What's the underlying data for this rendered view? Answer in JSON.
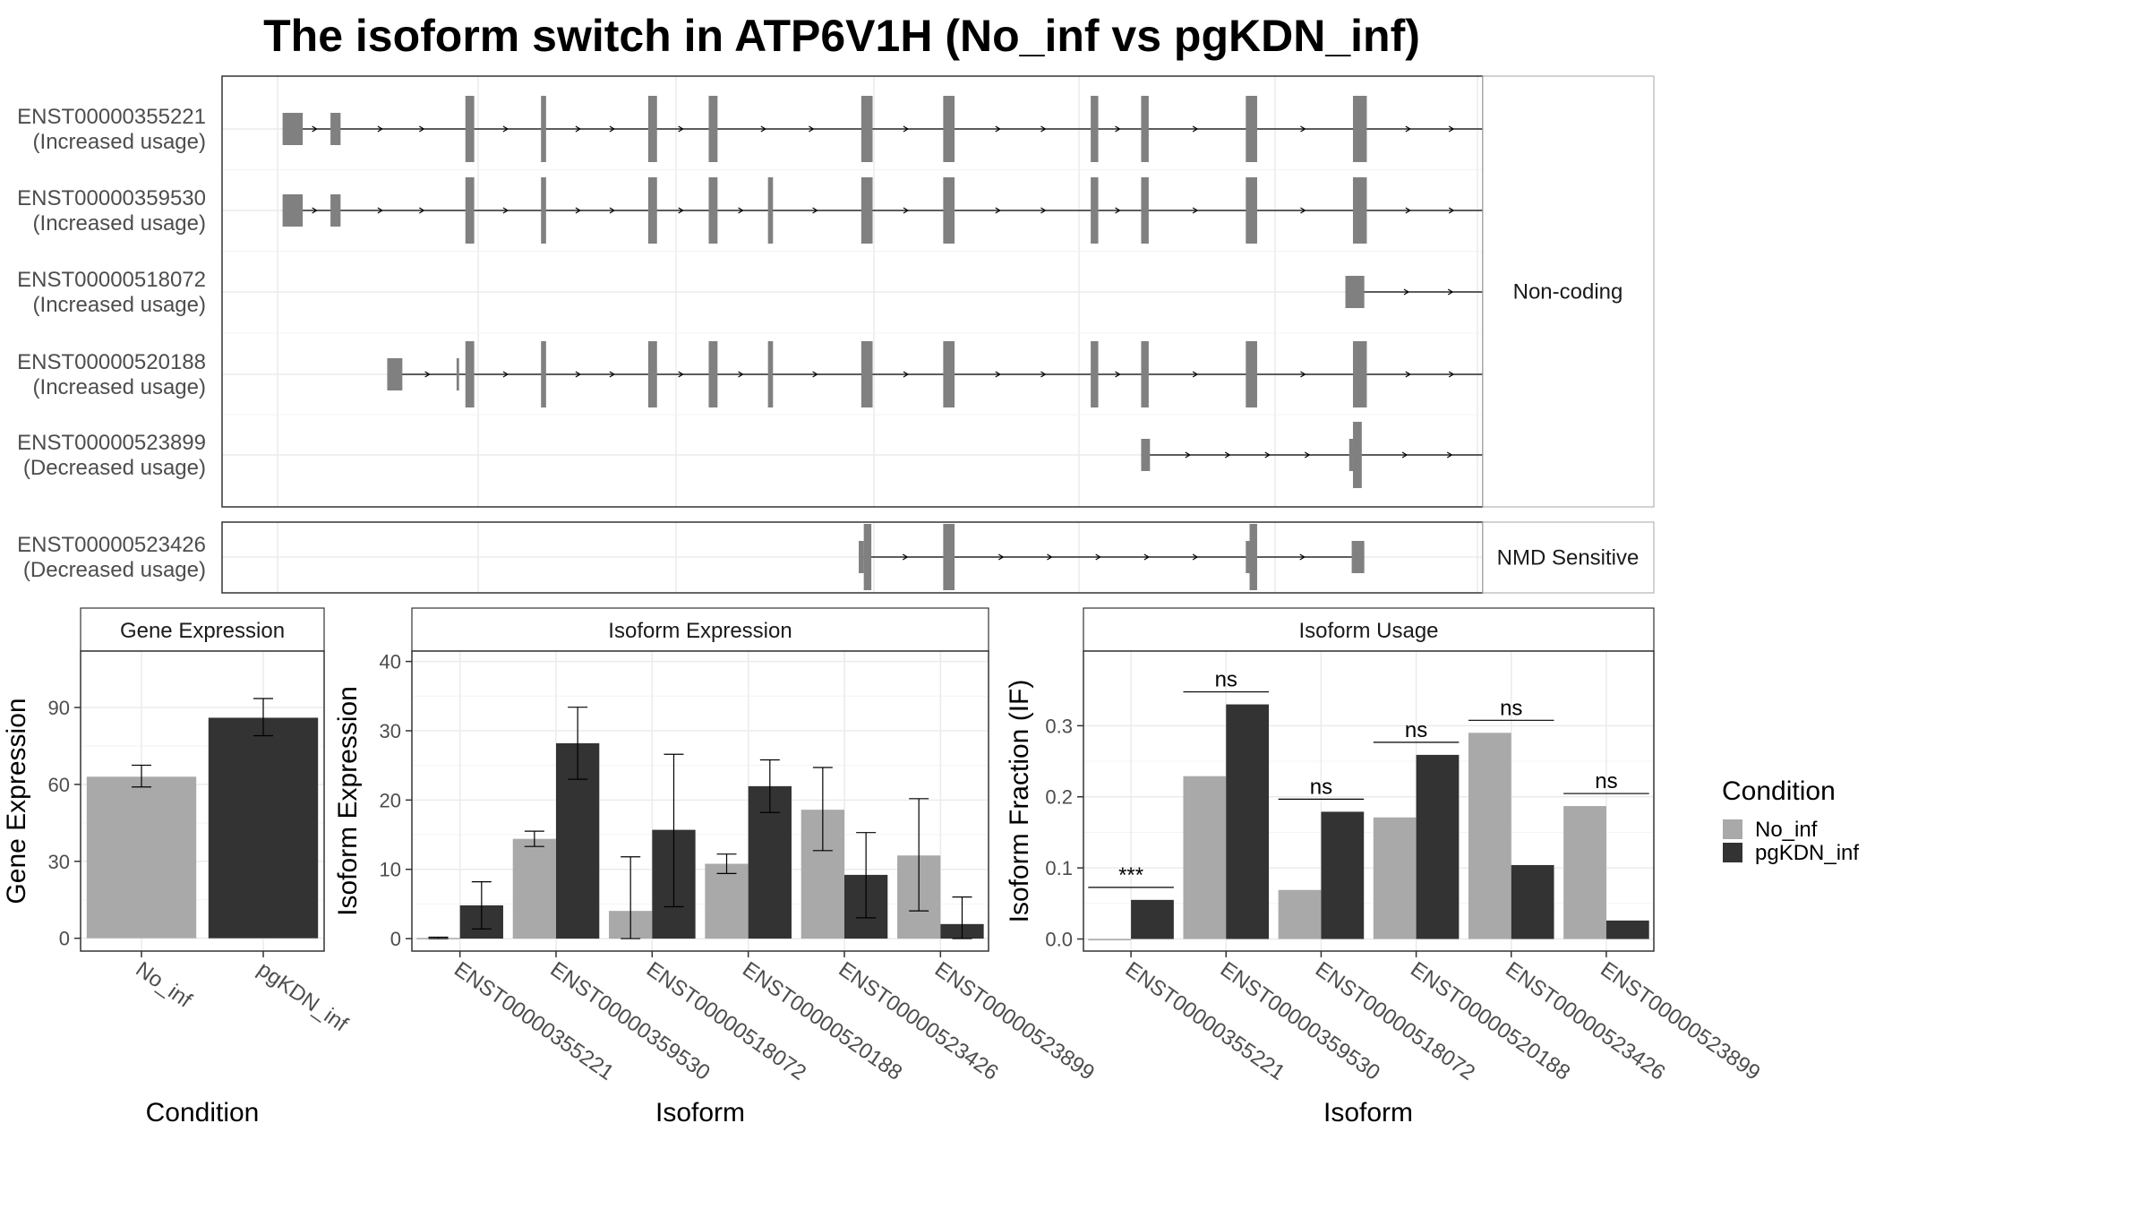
{
  "title": "The isoform switch in ATP6V1H (No_inf vs pgKDN_inf)",
  "colors": {
    "no_inf": "#a9a9a9",
    "pgkdn_inf": "#333333",
    "exon": "#808080",
    "grid": "#ebebeb",
    "frame": "#333333",
    "strip_fill": "#ffffff",
    "strip_border": "#b3b3b3"
  },
  "structure": {
    "x_range": [
      0,
      1000
    ],
    "facets": [
      {
        "label": "Non-coding",
        "tracks": [
          {
            "id": "ENST00000355221",
            "usage": "(Increased usage)",
            "exons": [
              [
                48,
                64
              ],
              [
                86,
                94
              ],
              [
                193,
                200
              ],
              [
                253,
                257
              ],
              [
                338,
                345
              ],
              [
                386,
                393
              ],
              [
                507,
                516
              ],
              [
                572,
                581
              ],
              [
                689,
                695
              ],
              [
                729,
                735
              ],
              [
                812,
                821
              ],
              [
                897,
                908
              ],
              [
                1011,
                1038
              ]
            ],
            "heights": [
              1,
              1,
              2,
              2,
              2,
              2,
              2,
              2,
              2,
              2,
              2,
              2,
              1
            ]
          },
          {
            "id": "ENST00000359530",
            "usage": "(Increased usage)",
            "exons": [
              [
                48,
                64
              ],
              [
                86,
                94
              ],
              [
                193,
                200
              ],
              [
                253,
                257
              ],
              [
                338,
                345
              ],
              [
                386,
                393
              ],
              [
                433,
                437
              ],
              [
                507,
                516
              ],
              [
                572,
                581
              ],
              [
                689,
                695
              ],
              [
                729,
                735
              ],
              [
                812,
                821
              ],
              [
                897,
                908
              ],
              [
                1011,
                1041
              ]
            ],
            "heights": [
              1,
              1,
              2,
              2,
              2,
              2,
              2,
              2,
              2,
              2,
              2,
              2,
              2,
              1
            ]
          },
          {
            "id": "ENST00000518072",
            "usage": "(Increased usage)",
            "exons": [
              [
                891,
                906
              ],
              [
                1011,
                1030
              ]
            ],
            "heights": [
              1,
              1
            ]
          },
          {
            "id": "ENST00000520188",
            "usage": "(Increased usage)",
            "exons": [
              [
                131,
                143
              ],
              [
                186,
                188
              ],
              [
                193,
                200
              ],
              [
                253,
                257
              ],
              [
                338,
                345
              ],
              [
                386,
                393
              ],
              [
                433,
                437
              ],
              [
                507,
                516
              ],
              [
                572,
                581
              ],
              [
                689,
                695
              ],
              [
                729,
                735
              ],
              [
                812,
                821
              ],
              [
                897,
                908
              ],
              [
                1011,
                1029
              ]
            ],
            "heights": [
              1,
              1,
              2,
              2,
              2,
              2,
              2,
              2,
              2,
              2,
              2,
              2,
              2,
              1
            ]
          },
          {
            "id": "ENST00000523899",
            "usage": "(Decreased usage)",
            "exons": [
              [
                729,
                736
              ],
              [
                894,
                897
              ],
              [
                897,
                904
              ],
              [
                1011,
                1015
              ],
              [
                1015,
                1028
              ]
            ],
            "heights": [
              1,
              1,
              2,
              2,
              1
            ]
          }
        ]
      },
      {
        "label": "NMD Sensitive",
        "tracks": [
          {
            "id": "ENST00000523426",
            "usage": "(Decreased usage)",
            "exons": [
              [
                505,
                509
              ],
              [
                509,
                515
              ],
              [
                572,
                581
              ],
              [
                812,
                815
              ],
              [
                815,
                821
              ],
              [
                896,
                906
              ]
            ],
            "heights": [
              1,
              2,
              2,
              1,
              2,
              1
            ]
          }
        ]
      }
    ]
  },
  "chart_data": [
    {
      "type": "bar",
      "panel": "Gene Expression",
      "categories": [
        "No_inf",
        "pgKDN_inf"
      ],
      "series": [
        {
          "name": "No_inf",
          "values": [
            63.0,
            null
          ]
        },
        {
          "name": "pgKDN_inf",
          "values": [
            null,
            86.0
          ]
        }
      ],
      "error_bars": [
        [
          59.0,
          67.5
        ],
        [
          79.0,
          93.5
        ]
      ],
      "xlabel": "Condition",
      "ylabel": "Gene Expression",
      "yticks": [
        0,
        30,
        60,
        90
      ],
      "ylim": [
        -5,
        112
      ],
      "grid": true
    },
    {
      "type": "bar",
      "panel": "Isoform Expression",
      "categories": [
        "ENST00000355221",
        "ENST00000359530",
        "ENST00000518072",
        "ENST00000520188",
        "ENST00000523426",
        "ENST00000523899"
      ],
      "series": [
        {
          "name": "No_inf",
          "values": [
            0.1,
            14.4,
            4.0,
            10.8,
            18.6,
            12.0
          ],
          "error_low": [
            0.0,
            13.3,
            0.0,
            9.4,
            12.7,
            4.0
          ],
          "error_high": [
            0.2,
            15.5,
            11.8,
            12.2,
            24.7,
            20.2
          ]
        },
        {
          "name": "pgKDN_inf",
          "values": [
            4.8,
            28.2,
            15.7,
            22.0,
            9.2,
            2.1
          ],
          "error_low": [
            1.4,
            23.0,
            4.6,
            18.2,
            3.0,
            0.0
          ],
          "error_high": [
            8.2,
            33.4,
            26.6,
            25.8,
            15.3,
            6.0
          ]
        }
      ],
      "xlabel": "Isoform",
      "ylabel": "Isoform Expression",
      "yticks": [
        0,
        10,
        20,
        30,
        40
      ],
      "ylim": [
        -1.8,
        41.5
      ],
      "grid": true
    },
    {
      "type": "bar",
      "panel": "Isoform Usage",
      "categories": [
        "ENST00000355221",
        "ENST00000359530",
        "ENST00000518072",
        "ENST00000520188",
        "ENST00000523426",
        "ENST00000523899"
      ],
      "series": [
        {
          "name": "No_inf",
          "values": [
            0.0,
            0.229,
            0.069,
            0.171,
            0.29,
            0.187
          ]
        },
        {
          "name": "pgKDN_inf",
          "values": [
            0.055,
            0.33,
            0.179,
            0.259,
            0.104,
            0.026
          ]
        }
      ],
      "significance": [
        "***",
        "ns",
        "ns",
        "ns",
        "ns",
        "ns"
      ],
      "xlabel": "Isoform",
      "ylabel": "Isoform Fraction (IF)",
      "yticks": [
        0.0,
        0.1,
        0.2,
        0.3
      ],
      "yticklabels": [
        "0.0",
        "0.1",
        "0.2",
        "0.3"
      ],
      "ylim": [
        -0.017,
        0.405
      ],
      "grid": true
    }
  ],
  "legend": {
    "title": "Condition",
    "items": [
      {
        "label": "No_inf",
        "color": "#a9a9a9"
      },
      {
        "label": "pgKDN_inf",
        "color": "#333333"
      }
    ]
  }
}
